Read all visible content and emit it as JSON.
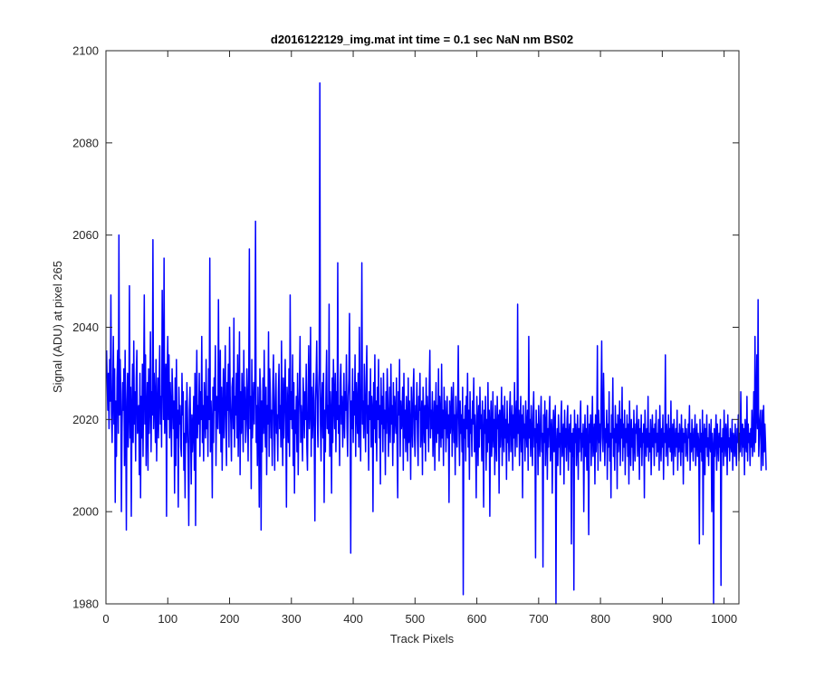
{
  "chart_data": {
    "type": "line",
    "title": "d2016122129_img.mat int time = 0.1 sec  NaN nm BS02",
    "xlabel": "Track Pixels",
    "ylabel": "Signal (ADU) at pixel 265",
    "xlim": [
      0,
      1024
    ],
    "ylim": [
      1980,
      2100
    ],
    "xticks": [
      0,
      100,
      200,
      300,
      400,
      500,
      600,
      700,
      800,
      900,
      1000
    ],
    "yticks": [
      1980,
      2000,
      2020,
      2040,
      2060,
      2080,
      2100
    ],
    "grid": false,
    "line_color": "#0000ff",
    "series": [
      {
        "x_start": 1,
        "x_step": 1,
        "values": [
          2035,
          2028,
          2022,
          2030,
          2018,
          2033,
          2024,
          2047,
          2021,
          2015,
          2026,
          2038,
          2019,
          2031,
          2002,
          2024,
          2012,
          2029,
          2035,
          2017,
          2060,
          2021,
          2033,
          2026,
          2000,
          2018,
          2028,
          2022,
          2031,
          2010,
          2035,
          2019,
          1996,
          2024,
          2030,
          2014,
          2022,
          2049,
          2016,
          2027,
          1999,
          2021,
          2032,
          2015,
          2037,
          2019,
          2026,
          2011,
          2029,
          2035,
          2017,
          2020,
          2023,
          2008,
          2030,
          2003,
          2025,
          2016,
          2032,
          2012,
          2027,
          2047,
          2019,
          2034,
          2010,
          2021,
          2028,
          2009,
          2031,
          2017,
          2024,
          2039,
          2013,
          2026,
          2021,
          2059,
          2018,
          2030,
          2024,
          2015,
          2033,
          2011,
          2022,
          2029,
          2016,
          2027,
          2036,
          2019,
          2025,
          2014,
          2048,
          2031,
          2020,
          2055,
          2017,
          2026,
          2032,
          1999,
          2029,
          2038,
          2020,
          2034,
          2016,
          2028,
          2022,
          2012,
          2031,
          2025,
          2018,
          2024,
          2004,
          2029,
          2010,
          2033,
          2016,
          2022,
          2001,
          2027,
          2019,
          2023,
          2014,
          2012,
          2030,
          2021,
          2026,
          2009,
          2017,
          2003,
          2024,
          2015,
          2028,
          2020,
          2011,
          1997,
          2022,
          2027,
          2017,
          2006,
          2021,
          2013,
          2018,
          2025,
          2009,
          2030,
          1997,
          2022,
          2035,
          2016,
          2023,
          2019,
          2030,
          2012,
          2026,
          2020,
          2038,
          2015,
          2023,
          2011,
          2028,
          2021,
          2016,
          2033,
          2018,
          2025,
          2012,
          2031,
          2020,
          2055,
          2013,
          2024,
          2019,
          2003,
          2027,
          2015,
          2029,
          2022,
          2036,
          2010,
          2025,
          2021,
          2018,
          2046,
          2024,
          2017,
          2035,
          2013,
          2027,
          2009,
          2021,
          2031,
          2016,
          2024,
          2036,
          2018,
          2010,
          2028,
          2022,
          2032,
          2014,
          2040,
          2025,
          2019,
          2011,
          2027,
          2029,
          2018,
          2042,
          2014,
          2025,
          2021,
          2030,
          2016,
          2034,
          2012,
          2024,
          2039,
          2008,
          2026,
          2017,
          2030,
          2021,
          2013,
          2035,
          2020,
          2027,
          2015,
          2019,
          2031,
          2024,
          2011,
          2029,
          2057,
          2018,
          2025,
          2005,
          2033,
          2016,
          2022,
          2028,
          2019,
          2030,
          2063,
          2015,
          2023,
          2010,
          2027,
          2018,
          2001,
          2031,
          2026,
          1996,
          2024,
          2013,
          2029,
          2017,
          2035,
          2020,
          2014,
          2027,
          2008,
          2023,
          2019,
          2039,
          2012,
          2031,
          2025,
          2016,
          2022,
          2010,
          2028,
          2034,
          2019,
          2009,
          2024,
          2030,
          2017,
          2021,
          2011,
          2026,
          2032,
          2018,
          2023,
          2014,
          2037,
          2020,
          2010,
          2029,
          2016,
          2025,
          2033,
          2019,
          2001,
          2027,
          2023,
          2015,
          2031,
          2012,
          2047,
          2020,
          2026,
          2018,
          2034,
          2010,
          2028,
          2004,
          2022,
          2017,
          2025,
          2013,
          2030,
          2008,
          2021,
          2027,
          2038,
          2015,
          2023,
          2019,
          2011,
          2029,
          2024,
          2016,
          2026,
          2020,
          2032,
          2014,
          2009,
          2025,
          2036,
          2018,
          2022,
          2040,
          2012,
          2027,
          2016,
          2021,
          2030,
          2015,
          1998,
          2024,
          2029,
          2037,
          2020,
          2014,
          2026,
          2031,
          2093,
          2019,
          2011,
          2024,
          2028,
          2016,
          2030,
          2002,
          2022,
          2013,
          2027,
          2035,
          2018,
          2023,
          2017,
          2045,
          2012,
          2026,
          2021,
          2004,
          2029,
          2015,
          2033,
          2024,
          2018,
          2030,
          2013,
          2026,
          2020,
          2054,
          2017,
          2023,
          2010,
          2028,
          2032,
          2019,
          2025,
          2014,
          2021,
          2030,
          2016,
          2026,
          2022,
          2034,
          2018,
          2012,
          2025,
          2029,
          2043,
          2020,
          1991,
          2024,
          2018,
          2031,
          2015,
          2026,
          2021,
          2034,
          2012,
          2028,
          2023,
          2017,
          2030,
          2014,
          2040,
          2022,
          2011,
          2027,
          2054,
          2019,
          2024,
          2016,
          2032,
          2021,
          2013,
          2028,
          2036,
          2017,
          2023,
          2009,
          2026,
          2020,
          2031,
          2014,
          2025,
          2022,
          2000,
          2028,
          2018,
          2034,
          2015,
          2024,
          2011,
          2027,
          2020,
          2033,
          2016,
          2023,
          2006,
          2029,
          2019,
          2025,
          2013,
          2030,
          2018,
          2022,
          2008,
          2026,
          2017,
          2031,
          2024,
          2012,
          2020,
          2027,
          2015,
          2032,
          2019,
          2023,
          2010,
          2028,
          2015,
          2025,
          2021,
          2017,
          2029,
          2014,
          2003,
          2026,
          2021,
          2033,
          2012,
          2024,
          2018,
          2020,
          2027,
          2009,
          2030,
          2016,
          2022,
          2013,
          2025,
          2019,
          2011,
          2029,
          2015,
          2024,
          2018,
          2007,
          2027,
          2021,
          2014,
          2026,
          2031,
          2017,
          2012,
          2023,
          2020,
          2028,
          2016,
          2010,
          2025,
          2022,
          2030,
          2014,
          2019,
          2024,
          2008,
          2027,
          2021,
          2015,
          2023,
          2011,
          2029,
          2018,
          2025,
          2020,
          2013,
          2027,
          2035,
          2016,
          2022,
          2018,
          2026,
          2012,
          2019,
          2024,
          2009,
          2021,
          2028,
          2015,
          2023,
          2017,
          2031,
          2011,
          2025,
          2020,
          2014,
          2032,
          2016,
          2022,
          2010,
          2027,
          2018,
          2024,
          2013,
          2019,
          2025,
          2016,
          2021,
          2002,
          2024,
          2017,
          2020,
          2027,
          2012,
          2022,
          2028,
          2015,
          2021,
          2008,
          2025,
          2018,
          2014,
          2023,
          2036,
          2019,
          2010,
          2024,
          2017,
          2021,
          2013,
          2027,
          1982,
          2020,
          2016,
          2023,
          2011,
          2025,
          2018,
          2030,
          2014,
          2022,
          2007,
          2026,
          2017,
          2020,
          2012,
          2024,
          2019,
          2029,
          2013,
          2021,
          2016,
          2003,
          2025,
          2019,
          2010,
          2023,
          2014,
          2027,
          2018,
          2021,
          2011,
          2024,
          2016,
          2001,
          2022,
          2017,
          2025,
          2009,
          2020,
          2013,
          2028,
          2015,
          2022,
          1999,
          2019,
          2024,
          2012,
          2017,
          2026,
          2014,
          2020,
          2008,
          2023,
          2016,
          2011,
          2025,
          2018,
          2021,
          2004,
          2022,
          2014,
          2019,
          2027,
          2010,
          2023,
          2017,
          2013,
          2025,
          2016,
          2020,
          2007,
          2024,
          2015,
          2019,
          2011,
          2022,
          2026,
          2013,
          2018,
          2023,
          2009,
          2021,
          2016,
          2028,
          2012,
          2020,
          2024,
          2014,
          2045,
          2017,
          2022,
          2010,
          2019,
          2025,
          2013,
          2021,
          2003,
          2023,
          2016,
          2019,
          2011,
          2024,
          2018,
          2014,
          2022,
          2009,
          2038,
          2016,
          2020,
          2012,
          2023,
          2017,
          2010,
          2021,
          2026,
          2014,
          2018,
          1990,
          2022,
          2015,
          2019,
          2008,
          2023,
          2016,
          2012,
          2020,
          2025,
          2013,
          2017,
          1988,
          2021,
          2015,
          2024,
          2010,
          2019,
          2022,
          2007,
          2018,
          2014,
          2021,
          2025,
          2011,
          2017,
          2020,
          2004,
          2016,
          2022,
          2013,
          2019,
          2023,
          1980,
          2015,
          2018,
          2010,
          2021,
          2014,
          2017,
          2008,
          2020,
          2024,
          2012,
          2016,
          2019,
          2006,
          2022,
          2014,
          2018,
          2011,
          2020,
          2023,
          2009,
          2016,
          2019,
          2013,
          2021,
          1993,
          2017,
          2012,
          2018,
          1983,
          2022,
          2015,
          2019,
          2010,
          2016,
          2021,
          2007,
          2018,
          2013,
          2020,
          2024,
          2011,
          2017,
          2014,
          2019,
          2000,
          2016,
          2021,
          2012,
          2018,
          2009,
          2023,
          2014,
          1995,
          2019,
          2015,
          2021,
          2010,
          2017,
          2025,
          2012,
          2016,
          2019,
          2006,
          2021,
          2013,
          2018,
          2036,
          2009,
          2022,
          2015,
          2019,
          2011,
          2024,
          2037,
          2016,
          2013,
          2030,
          2020,
          2010,
          2018,
          2015,
          2022,
          2007,
          2019,
          2014,
          2026,
          2011,
          2017,
          2003,
          2021,
          2016,
          2029,
          2012,
          2018,
          2009,
          2023,
          2015,
          2019,
          2005,
          2021,
          2013,
          2017,
          2024,
          2010,
          2020,
          2016,
          2027,
          2011,
          2019,
          2014,
          2022,
          2008,
          2018,
          2015,
          2021,
          2012,
          2019,
          2006,
          2024,
          2016,
          2010,
          2020,
          2014,
          2018,
          2009,
          2022,
          2015,
          2011,
          2019,
          2017,
          2023,
          2012,
          2016,
          2020,
          2007,
          2018,
          2014,
          2021,
          2010,
          2017,
          2015,
          2019,
          2003,
          2022,
          2016,
          2012,
          2018,
          2014,
          2025,
          2011,
          2017,
          2013,
          2020,
          2008,
          2016,
          2021,
          2014,
          2018,
          2010,
          2019,
          2015,
          2022,
          2012,
          2017,
          2013,
          2020,
          2009,
          2023,
          2016,
          2011,
          2018,
          2014,
          2021,
          2007,
          2017,
          2015,
          2034,
          2012,
          2019,
          2016,
          2010,
          2021,
          2014,
          2018,
          2013,
          2024,
          2011,
          2016,
          2019,
          2008,
          2020,
          2015,
          2012,
          2018,
          2014,
          2022,
          2009,
          2017,
          2013,
          2019,
          2016,
          2010,
          2021,
          2013,
          2018,
          2006,
          2017,
          2015,
          2020,
          2012,
          2018,
          2014,
          2011,
          2019,
          2016,
          2023,
          2009,
          2017,
          2013,
          2020,
          2015,
          2011,
          2018,
          2014,
          2021,
          2010,
          2016,
          2019,
          2012,
          2017,
          2015,
          1993,
          2020,
          2013,
          2017,
          2011,
          2022,
          1995,
          2016,
          2019,
          2008,
          2018,
          2014,
          2021,
          2012,
          2016,
          2010,
          2019,
          2015,
          2013,
          2020,
          2000,
          2017,
          2014,
          1980,
          2018,
          2012,
          2016,
          2021,
          2009,
          2019,
          2015,
          2011,
          2017,
          2014,
          2020,
          1984,
          2016,
          2013,
          2018,
          2010,
          2022,
          2015,
          2012,
          2019,
          2017,
          2008,
          2021,
          2014,
          2016,
          2011,
          2018,
          2015,
          2013,
          2020,
          2009,
          2017,
          2016,
          2012,
          2019,
          2014,
          2010,
          2018,
          2015,
          2021,
          2011,
          2017,
          2013,
          2026,
          2016,
          2012,
          2019,
          2014,
          2018,
          2008,
          2020,
          2016,
          2013,
          2025,
          2011,
          2019,
          2015,
          2017,
          2010,
          2018,
          2014,
          2022,
          2012,
          2016,
          2026,
          2013,
          2038,
          2015,
          2021,
          2034,
          2018,
          2046,
          2012,
          2016,
          2020,
          2022,
          2009,
          2017,
          2022,
          2010,
          2023,
          2013,
          2019,
          2015,
          2009
        ]
      }
    ]
  }
}
